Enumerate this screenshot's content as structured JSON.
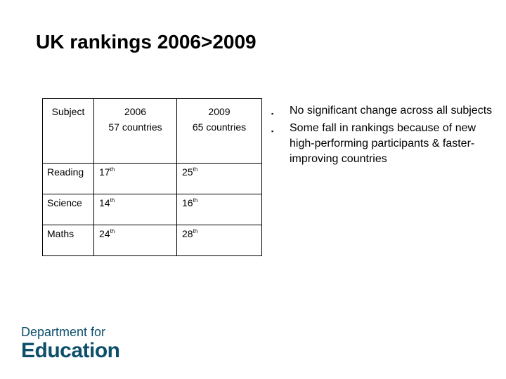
{
  "slide": {
    "title": "UK rankings 2006>2009"
  },
  "table": {
    "headers": {
      "subject": "Subject",
      "col2006_line1": "2006",
      "col2006_line2": "57 countries",
      "col2009_line1": "2009",
      "col2009_line2": "65 countries"
    },
    "rows": [
      {
        "subject": "Reading",
        "r2006_num": "17",
        "r2006_suf": "th",
        "r2009_num": "25",
        "r2009_suf": "th"
      },
      {
        "subject": "Science",
        "r2006_num": "14",
        "r2006_suf": "th",
        "r2009_num": "16",
        "r2009_suf": "th"
      },
      {
        "subject": "Maths",
        "r2006_num": "24",
        "r2006_suf": "th",
        "r2009_num": "28",
        "r2009_suf": "th"
      }
    ]
  },
  "bullets": {
    "marker": "▪",
    "items": [
      "No significant change across all subjects",
      "Some fall in rankings because of new high-performing participants & faster-improving countries"
    ]
  },
  "logo": {
    "line1": "Department for",
    "line2": "Education",
    "color": "#0d4f6b"
  }
}
